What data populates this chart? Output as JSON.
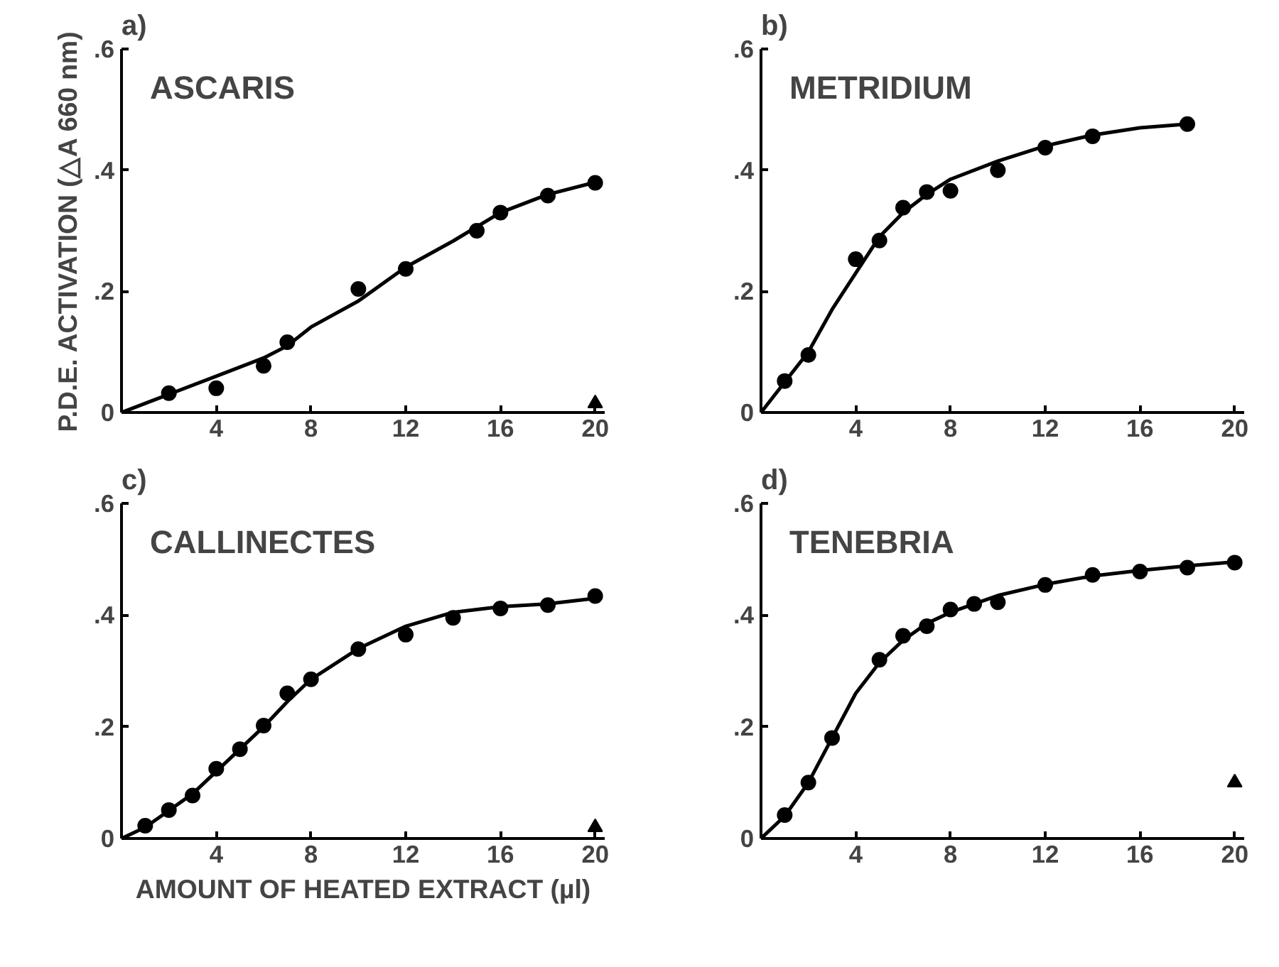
{
  "chart_data": [
    {
      "type": "scatter",
      "title": "a)",
      "subtitle": "ASCARIS",
      "ylabel": "P.D.E. ACTIVATION (△A 660 nm)",
      "xlim": [
        0,
        20.4
      ],
      "ylim": [
        0,
        0.6
      ],
      "xticks": [
        4,
        8,
        12,
        16,
        20
      ],
      "yticks": [
        {
          "value": 0,
          "label": "0"
        },
        {
          "value": 0.2,
          "label": ".2"
        },
        {
          "value": 0.4,
          "label": ".4"
        },
        {
          "value": 0.6,
          "label": ".6"
        }
      ],
      "grid": false,
      "series": [
        {
          "marker": "circle",
          "color": "#000000",
          "x": [
            2,
            4,
            6,
            7,
            10,
            12,
            15,
            16,
            18,
            20
          ],
          "values": [
            0.032,
            0.04,
            0.077,
            0.116,
            0.204,
            0.237,
            0.3,
            0.33,
            0.358,
            0.379
          ]
        },
        {
          "type": "line",
          "line_style": "solid",
          "color": "#000000",
          "x": [
            0,
            2,
            4,
            6,
            7,
            8,
            10,
            12,
            14,
            16,
            18,
            20
          ],
          "values": [
            0,
            0.03,
            0.06,
            0.09,
            0.11,
            0.141,
            0.184,
            0.24,
            0.283,
            0.33,
            0.36,
            0.38
          ]
        },
        {
          "type": "scatter",
          "marker": "triangle",
          "color": "#000000",
          "x": [
            20
          ],
          "values": [
            0.015
          ]
        }
      ]
    },
    {
      "type": "scatter",
      "title": "b)",
      "subtitle": "METRIDIUM",
      "xlim": [
        0,
        20.4
      ],
      "ylim": [
        0,
        0.6
      ],
      "xticks": [
        4,
        8,
        12,
        16,
        20
      ],
      "yticks": [
        {
          "value": 0,
          "label": "0"
        },
        {
          "value": 0.2,
          "label": ".2"
        },
        {
          "value": 0.4,
          "label": ".4"
        },
        {
          "value": 0.6,
          "label": ".6"
        }
      ],
      "grid": false,
      "series": [
        {
          "marker": "circle",
          "color": "#000000",
          "x": [
            1,
            2,
            4,
            5,
            6,
            7,
            8,
            10,
            12,
            14,
            18
          ],
          "values": [
            0.052,
            0.095,
            0.253,
            0.284,
            0.338,
            0.364,
            0.366,
            0.4,
            0.437,
            0.456,
            0.476
          ]
        },
        {
          "type": "line",
          "line_style": "solid",
          "color": "#000000",
          "x": [
            0,
            1,
            2,
            3,
            4,
            5,
            6,
            7,
            8,
            10,
            12,
            14,
            16,
            18
          ],
          "values": [
            0,
            0.05,
            0.1,
            0.17,
            0.23,
            0.29,
            0.33,
            0.36,
            0.385,
            0.415,
            0.44,
            0.458,
            0.47,
            0.476
          ]
        }
      ]
    },
    {
      "type": "scatter",
      "title": "c)",
      "subtitle": "CALLINECTES",
      "xlabel": "AMOUNT OF HEATED EXTRACT (µl)",
      "xlim": [
        0,
        20.4
      ],
      "ylim": [
        0,
        0.6
      ],
      "xticks": [
        4,
        8,
        12,
        16,
        20
      ],
      "yticks": [
        {
          "value": 0,
          "label": "0"
        },
        {
          "value": 0.2,
          "label": ".2"
        },
        {
          "value": 0.4,
          "label": ".4"
        },
        {
          "value": 0.6,
          "label": ".6"
        }
      ],
      "grid": false,
      "series": [
        {
          "marker": "circle",
          "color": "#000000",
          "x": [
            1,
            2,
            3,
            4,
            5,
            6,
            7,
            8,
            10,
            12,
            14,
            16,
            18,
            20
          ],
          "values": [
            0.023,
            0.051,
            0.077,
            0.125,
            0.16,
            0.202,
            0.26,
            0.285,
            0.339,
            0.365,
            0.395,
            0.412,
            0.418,
            0.434
          ]
        },
        {
          "type": "line",
          "line_style": "solid",
          "color": "#000000",
          "x": [
            0,
            1,
            2,
            3,
            4,
            5,
            6,
            7,
            8,
            10,
            12,
            14,
            16,
            18,
            20
          ],
          "values": [
            0,
            0.02,
            0.05,
            0.08,
            0.12,
            0.16,
            0.2,
            0.245,
            0.285,
            0.34,
            0.38,
            0.405,
            0.415,
            0.42,
            0.43
          ]
        },
        {
          "type": "scatter",
          "marker": "triangle",
          "color": "#000000",
          "x": [
            20
          ],
          "values": [
            0.02
          ]
        }
      ]
    },
    {
      "type": "scatter",
      "title": "d)",
      "subtitle": "TENEBRIA",
      "xlim": [
        0,
        20.4
      ],
      "ylim": [
        0,
        0.6
      ],
      "xticks": [
        4,
        8,
        12,
        16,
        20
      ],
      "yticks": [
        {
          "value": 0,
          "label": "0"
        },
        {
          "value": 0.2,
          "label": ".2"
        },
        {
          "value": 0.4,
          "label": ".4"
        },
        {
          "value": 0.6,
          "label": ".6"
        }
      ],
      "grid": false,
      "series": [
        {
          "marker": "circle",
          "color": "#000000",
          "x": [
            1,
            2,
            3,
            5,
            6,
            7,
            8,
            9,
            10,
            12,
            14,
            16,
            18,
            20
          ],
          "values": [
            0.042,
            0.1,
            0.18,
            0.32,
            0.363,
            0.38,
            0.41,
            0.42,
            0.423,
            0.454,
            0.472,
            0.478,
            0.485,
            0.494
          ]
        },
        {
          "type": "line",
          "line_style": "solid",
          "color": "#000000",
          "x": [
            0,
            1,
            2,
            3,
            4,
            5,
            6,
            7,
            8,
            10,
            12,
            14,
            16,
            18,
            20
          ],
          "values": [
            0,
            0.04,
            0.1,
            0.18,
            0.26,
            0.315,
            0.355,
            0.385,
            0.405,
            0.435,
            0.455,
            0.47,
            0.48,
            0.488,
            0.495
          ]
        },
        {
          "type": "scatter",
          "marker": "triangle",
          "color": "#000000",
          "x": [
            20
          ],
          "values": [
            0.1
          ]
        }
      ]
    }
  ]
}
